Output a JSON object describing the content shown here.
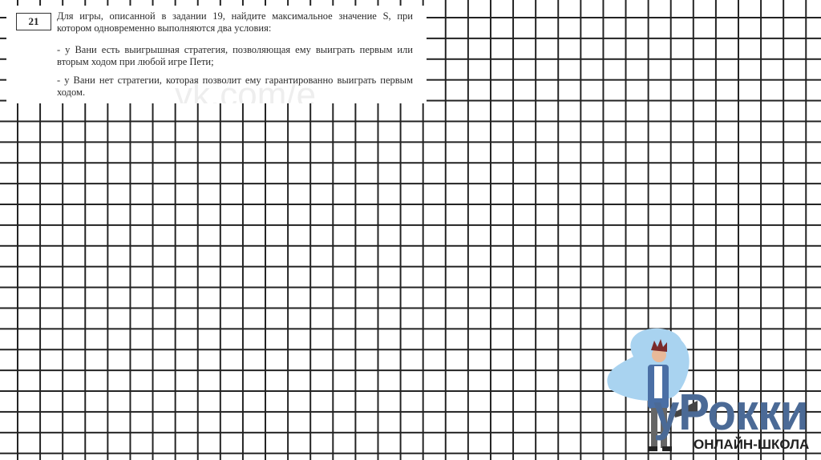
{
  "task": {
    "number": "21",
    "intro": "Для игры, описанной в задании 19, найдите максимальное значение S, при котором одновременно выполняются два условия:",
    "conditions": [
      "- у Вани есть выигрышная стратегия, позволяющая ему выиграть первым или вторым ходом при любой игре Пети;",
      "- у Вани нет стратегии, которая позволит ему гарантированно выиграть первым ходом."
    ],
    "watermark": "vk.com/e"
  },
  "logo": {
    "brand": "уРокки",
    "subtitle": "ОНЛАЙН-ШКОЛА",
    "color": "#4b6a96"
  }
}
